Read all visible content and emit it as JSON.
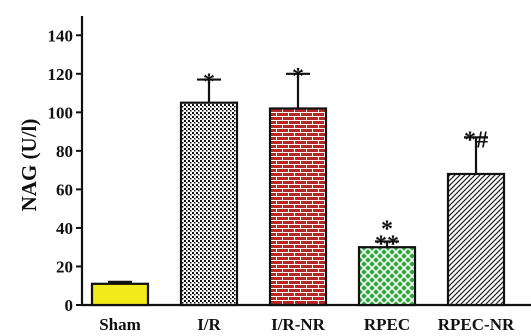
{
  "chart_data": {
    "type": "bar",
    "title": "",
    "xlabel": "",
    "ylabel": "NAG (U/l)",
    "ylim": [
      0,
      150
    ],
    "yticks": [
      0,
      20,
      40,
      60,
      80,
      100,
      120,
      140
    ],
    "grid": false,
    "categories": [
      "Sham",
      "I/R",
      "I/R-NR",
      "RPEC",
      "RPEC-NR"
    ],
    "values": [
      11,
      105,
      102,
      30,
      68
    ],
    "errors": [
      1,
      12,
      18,
      3,
      19
    ],
    "annotations": [
      "",
      "*",
      "*",
      "*\n**",
      "*#"
    ],
    "bar_styles": [
      {
        "fill": "#f2ea1a",
        "pattern": "solid"
      },
      {
        "fill": "#ffffff",
        "pattern": "dots",
        "pattern_color": "#111111"
      },
      {
        "fill": "#b52727",
        "pattern": "brick",
        "pattern_color": "#ffffff"
      },
      {
        "fill": "#2aaa3a",
        "pattern": "crosshatch",
        "pattern_color": "#ffffff"
      },
      {
        "fill": "#ffffff",
        "pattern": "diagonal",
        "pattern_color": "#222222"
      }
    ]
  }
}
